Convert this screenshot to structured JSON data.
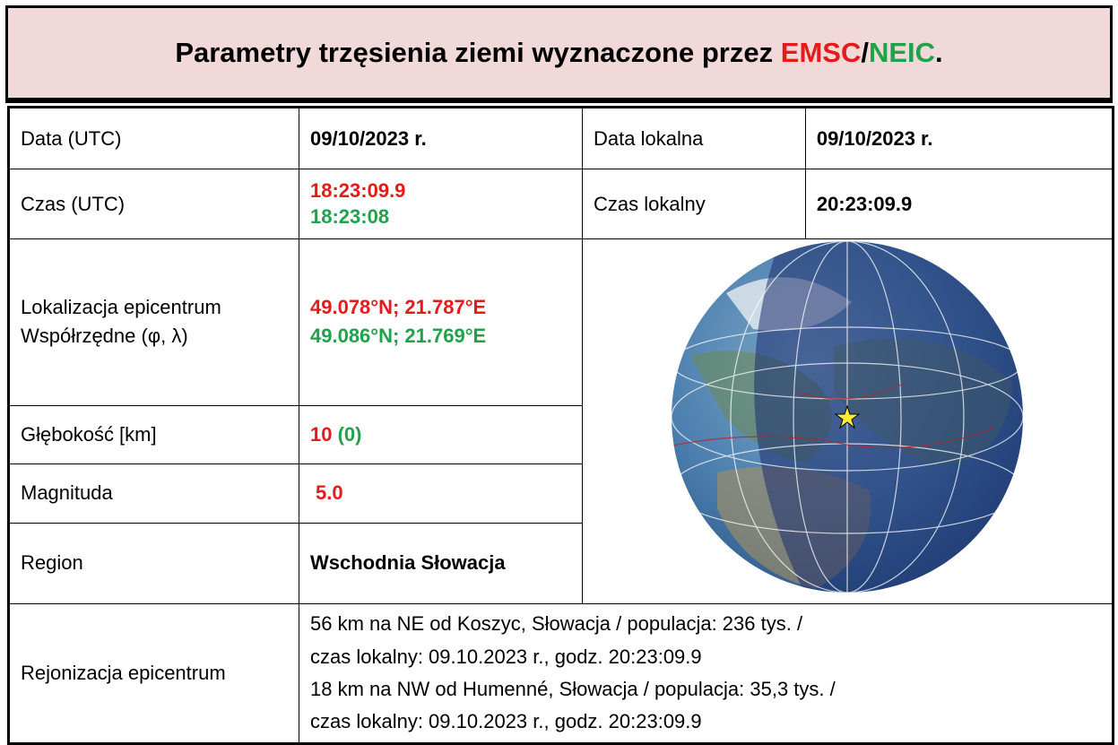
{
  "header": {
    "title": "Parametry trzęsienia ziemi wyznaczone przez",
    "agency_emsc": "EMSC",
    "separator": "/",
    "agency_neic": "NEIC",
    "end": "."
  },
  "table": {
    "date_utc": {
      "label": "Data (UTC)",
      "value": "09/10/2023 r."
    },
    "date_local": {
      "label": "Data lokalna",
      "value": "09/10/2023 r."
    },
    "time_utc": {
      "label": "Czas (UTC)",
      "emsc": "18:23:09.9",
      "neic": "18:23:08"
    },
    "time_local": {
      "label": "Czas lokalny",
      "value": "20:23:09.9"
    },
    "epicenter": {
      "label_lines": [
        "Lokalizacja epicentrum",
        "Współrzędne (φ, λ)"
      ],
      "emsc": "49.078°N; 21.787°E",
      "neic": "49.086°N; 21.769°E"
    },
    "depth": {
      "label": "Głębokość [km]",
      "emsc": "10",
      "neic": "(0)"
    },
    "magnitude": {
      "label": "Magnituda",
      "emsc": "5.0"
    },
    "region": {
      "label": "Region",
      "value": "Wschodnia Słowacja"
    },
    "regionalization": {
      "label": "Rejonizacja epicentrum",
      "lines": [
        "56 km na NE od Koszyc, Słowacja / populacja: 236 tys. /",
        "czas lokalny: 09.10.2023 r., godz. 20:23:09.9",
        "18 km na NW od Humenné, Słowacja / populacja: 35,3 tys. /",
        "czas lokalny: 09.10.2023 r., godz. 20:23:09.9"
      ]
    }
  }
}
